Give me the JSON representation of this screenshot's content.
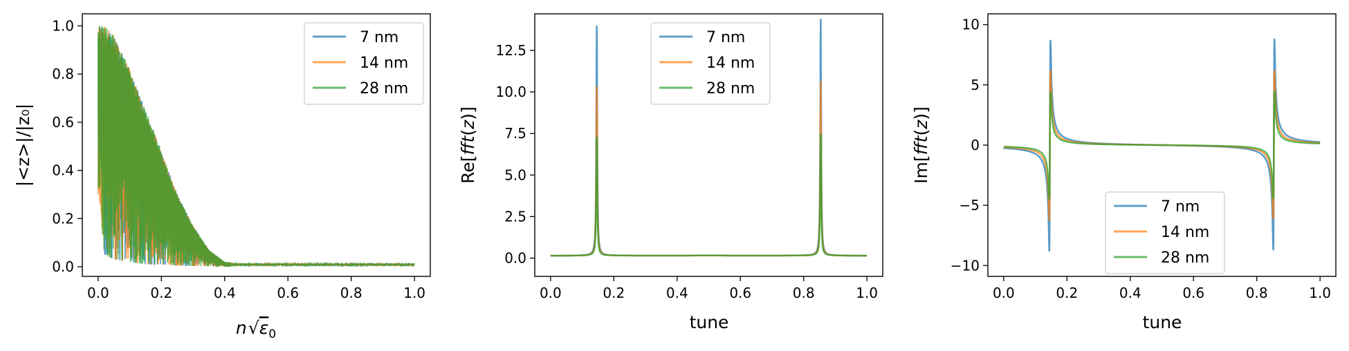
{
  "chart_data": [
    {
      "type": "line",
      "xlabel_parts": [
        "n",
        "√",
        "ε",
        "0"
      ],
      "ylabel": "|<z>|/|z₀|",
      "xlim": [
        -0.05,
        1.05
      ],
      "ylim": [
        -0.04,
        1.05
      ],
      "xticks": [
        0.0,
        0.2,
        0.4,
        0.6,
        0.8,
        1.0
      ],
      "xtick_labels": [
        "0.0",
        "0.2",
        "0.4",
        "0.6",
        "0.8",
        "1.0"
      ],
      "yticks": [
        0.0,
        0.2,
        0.4,
        0.6,
        0.8,
        1.0
      ],
      "ytick_labels": [
        "0.0",
        "0.2",
        "0.4",
        "0.6",
        "0.8",
        "1.0"
      ],
      "legend": "top-right",
      "grid": false,
      "series": [
        {
          "name": "7 nm",
          "color": "#1f77b4"
        },
        {
          "name": "14 nm",
          "color": "#ff7f0e"
        },
        {
          "name": "28 nm",
          "color": "#2ca02c"
        }
      ],
      "x": [
        0.0,
        0.02,
        0.05,
        0.1,
        0.15,
        0.2,
        0.25,
        0.3,
        0.35,
        0.4,
        0.5,
        0.6,
        0.8,
        1.0
      ],
      "envelope_upper": [
        1.0,
        1.0,
        0.96,
        0.82,
        0.65,
        0.48,
        0.3,
        0.17,
        0.07,
        0.02,
        0.01,
        0.01,
        0.01,
        0.01
      ],
      "envelope_lower": [
        0.3,
        0.05,
        0.03,
        0.02,
        0.01,
        0.01,
        0.005,
        0.003,
        0.002,
        0.0,
        0.0,
        0.0,
        0.0,
        0.0
      ]
    },
    {
      "type": "line",
      "xlabel": "tune",
      "ylabel_parts": [
        "Re[",
        "fft",
        "(",
        "z",
        ")]"
      ],
      "xlim": [
        -0.05,
        1.05
      ],
      "ylim": [
        -1.1,
        14.7
      ],
      "xticks": [
        0.0,
        0.2,
        0.4,
        0.6,
        0.8,
        1.0
      ],
      "xtick_labels": [
        "0.0",
        "0.2",
        "0.4",
        "0.6",
        "0.8",
        "1.0"
      ],
      "yticks": [
        0.0,
        2.5,
        5.0,
        7.5,
        10.0,
        12.5
      ],
      "ytick_labels": [
        "0.0",
        "2.5",
        "5.0",
        "7.5",
        "10.0",
        "12.5"
      ],
      "legend": "top-center",
      "grid": false,
      "peaks": [
        0.146,
        0.854
      ],
      "baseline": 0.15,
      "series": [
        {
          "name": "7 nm",
          "color": "#1f77b4",
          "peak": 14.0,
          "min": -0.4
        },
        {
          "name": "14 nm",
          "color": "#ff7f0e",
          "peak": 10.3,
          "min": -0.3
        },
        {
          "name": "28 nm",
          "color": "#2ca02c",
          "peak": 7.2,
          "min": -0.2
        }
      ]
    },
    {
      "type": "line",
      "xlabel": "tune",
      "ylabel_parts": [
        "Im[",
        "fft",
        "(",
        "z",
        ")]"
      ],
      "xlim": [
        -0.05,
        1.05
      ],
      "ylim": [
        -10.9,
        10.9
      ],
      "xticks": [
        0.0,
        0.2,
        0.4,
        0.6,
        0.8,
        1.0
      ],
      "xtick_labels": [
        "0.0",
        "0.2",
        "0.4",
        "0.6",
        "0.8",
        "1.0"
      ],
      "yticks": [
        -10,
        -5,
        0,
        5,
        10
      ],
      "ytick_labels": [
        "−10",
        "−5",
        "0",
        "5",
        "10"
      ],
      "legend": "bottom-center",
      "grid": false,
      "resonances": [
        0.146,
        0.854
      ],
      "series": [
        {
          "name": "7 nm",
          "color": "#1f77b4",
          "max1": 9.9,
          "min1": -7.7,
          "max2": 7.7,
          "min2": -9.9
        },
        {
          "name": "14 nm",
          "color": "#ff7f0e",
          "max1": 7.0,
          "min1": -5.5,
          "max2": 5.4,
          "min2": -7.0
        },
        {
          "name": "28 nm",
          "color": "#2ca02c",
          "max1": 5.0,
          "min1": -4.0,
          "max2": 4.0,
          "min2": -5.0
        }
      ]
    }
  ]
}
